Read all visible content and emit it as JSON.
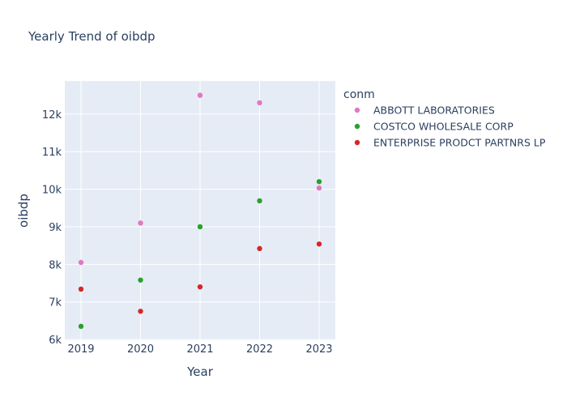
{
  "chart_data": {
    "type": "scatter",
    "title": "Yearly Trend of oibdp",
    "xlabel": "Year",
    "ylabel": "oibdp",
    "x": [
      2019,
      2020,
      2021,
      2022,
      2023
    ],
    "xtick_labels": [
      "2019",
      "2020",
      "2021",
      "2022",
      "2023"
    ],
    "ylim": [
      5980,
      12880
    ],
    "yticks": [
      6000,
      7000,
      8000,
      9000,
      10000,
      11000,
      12000
    ],
    "ytick_labels": [
      "6k",
      "7k",
      "8k",
      "9k",
      "10k",
      "11k",
      "12k"
    ],
    "grid": true,
    "legend_title": "conm",
    "legend_placement": "right",
    "series": [
      {
        "name": "ABBOTT LABORATORIES",
        "color": "#e377c2",
        "values": [
          8050,
          9100,
          12500,
          12300,
          10030
        ]
      },
      {
        "name": "COSTCO WHOLESALE CORP",
        "color": "#2ca02c",
        "values": [
          6350,
          7580,
          9000,
          9690,
          10200
        ]
      },
      {
        "name": "ENTERPRISE PRODCT PARTNRS LP",
        "color": "#d62728",
        "values": [
          7340,
          6750,
          7400,
          8420,
          8540
        ]
      }
    ]
  }
}
